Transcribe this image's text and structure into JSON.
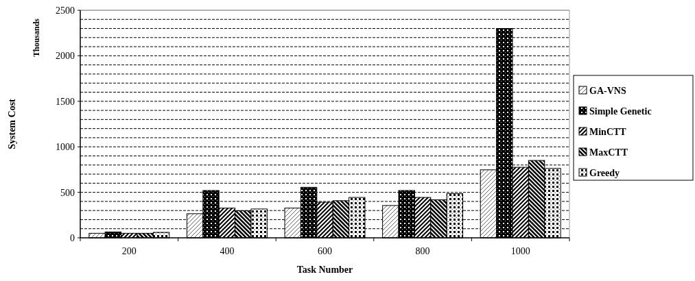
{
  "chart_data": {
    "type": "bar",
    "xlabel": "Task Number",
    "ylabel": "System Cost",
    "annotations": [
      "Thousands"
    ],
    "categories": [
      "200",
      "400",
      "600",
      "800",
      "1000"
    ],
    "series": [
      {
        "name": "GA-VNS",
        "color": "#000000",
        "values": [
          50,
          265,
          327,
          355,
          747
        ]
      },
      {
        "name": "Simple Genetic",
        "color": "#000000",
        "values": [
          65,
          520,
          555,
          520,
          2300
        ]
      },
      {
        "name": "MinCTT",
        "color": "#000000",
        "values": [
          50,
          327,
          391,
          444,
          775
        ]
      },
      {
        "name": "MaxCTT",
        "color": "#000000",
        "values": [
          50,
          297,
          408,
          418,
          850
        ]
      },
      {
        "name": "Greedy",
        "color": "#000000",
        "values": [
          60,
          317,
          444,
          485,
          763
        ]
      }
    ],
    "ylim": [
      0,
      2500
    ],
    "yticks": [
      0,
      {
        "value": 100,
        "label": null
      },
      {
        "value": 200,
        "label": null
      },
      {
        "value": 300,
        "label": null
      },
      {
        "value": 400,
        "label": null
      },
      500,
      {
        "value": 600,
        "label": null
      },
      {
        "value": 700,
        "label": null
      },
      {
        "value": 800,
        "label": null
      },
      {
        "value": 900,
        "label": null
      },
      1000,
      {
        "value": 1100,
        "label": null
      },
      {
        "value": 1200,
        "label": null
      },
      {
        "value": 1300,
        "label": null
      },
      {
        "value": 1400,
        "label": null
      },
      1500,
      {
        "value": 1600,
        "label": null
      },
      {
        "value": 1700,
        "label": null
      },
      {
        "value": 1800,
        "label": null
      },
      {
        "value": 1900,
        "label": null
      },
      2000,
      {
        "value": 2100,
        "label": null
      },
      {
        "value": 2200,
        "label": null
      },
      {
        "value": 2300,
        "label": null
      },
      {
        "value": 2400,
        "label": null
      },
      2500
    ],
    "grid": "y",
    "legend": "right"
  }
}
